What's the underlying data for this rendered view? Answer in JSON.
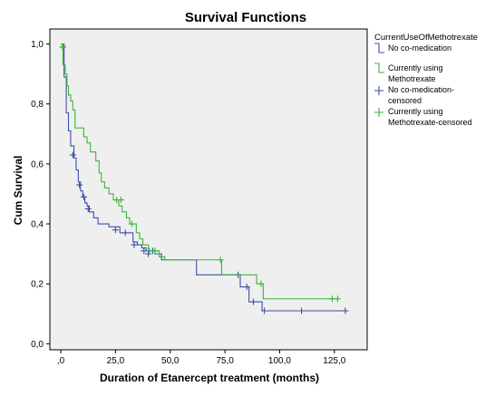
{
  "chart_data": {
    "type": "line",
    "title": "Survival Functions",
    "xlabel": "Duration of Etanercept treatment (months)",
    "ylabel": "Cum Survival",
    "xlim": [
      -5,
      140
    ],
    "ylim": [
      -0.02,
      1.05
    ],
    "x_ticks": [
      0,
      25,
      50,
      75,
      100,
      125
    ],
    "x_tick_labels": [
      ",0",
      "25,0",
      "50,0",
      "75,0",
      "100,0",
      "125,0"
    ],
    "y_ticks": [
      0,
      0.2,
      0.4,
      0.6,
      0.8,
      1.0
    ],
    "y_tick_labels": [
      "0,0",
      "0,2",
      "0,4",
      "0,6",
      "0,8",
      "1,0"
    ],
    "legend": {
      "title": "CurrentUseOfMethotrexate",
      "position": "right",
      "entries": [
        {
          "label": [
            "No co-medication"
          ],
          "color": "#3b4fa8",
          "marker": "step"
        },
        {
          "label": [
            "Currently using",
            "Methotrexate"
          ],
          "color": "#3bb53b",
          "marker": "step"
        },
        {
          "label": [
            "No co-medication-",
            "censored"
          ],
          "color": "#3b4fa8",
          "marker": "plus"
        },
        {
          "label": [
            "Currently using",
            "Methotrexate-censored"
          ],
          "color": "#3bb53b",
          "marker": "plus"
        }
      ]
    },
    "series": [
      {
        "name": "No co-medication",
        "color": "#3b4fa8",
        "steps": [
          [
            0,
            1.0
          ],
          [
            1.5,
            0.89
          ],
          [
            2.5,
            0.77
          ],
          [
            3.5,
            0.71
          ],
          [
            4.5,
            0.66
          ],
          [
            6,
            0.62
          ],
          [
            7,
            0.58
          ],
          [
            8,
            0.54
          ],
          [
            9,
            0.51
          ],
          [
            10,
            0.49
          ],
          [
            11,
            0.47
          ],
          [
            12,
            0.46
          ],
          [
            13,
            0.44
          ],
          [
            15,
            0.42
          ],
          [
            17,
            0.4
          ],
          [
            22,
            0.39
          ],
          [
            27,
            0.37
          ],
          [
            33,
            0.34
          ],
          [
            35,
            0.33
          ],
          [
            37,
            0.32
          ],
          [
            39,
            0.31
          ],
          [
            43,
            0.3
          ],
          [
            46,
            0.28
          ],
          [
            62,
            0.23
          ],
          [
            82,
            0.19
          ],
          [
            86,
            0.14
          ],
          [
            92,
            0.11
          ],
          [
            131,
            0.11
          ]
        ],
        "censored": [
          [
            1,
            0.99
          ],
          [
            5.5,
            0.63
          ],
          [
            8.5,
            0.53
          ],
          [
            10.5,
            0.49
          ],
          [
            12.5,
            0.45
          ],
          [
            25,
            0.38
          ],
          [
            29.5,
            0.37
          ],
          [
            33.5,
            0.33
          ],
          [
            38,
            0.31
          ],
          [
            40,
            0.3
          ],
          [
            42,
            0.31
          ],
          [
            81,
            0.23
          ],
          [
            85,
            0.19
          ],
          [
            88,
            0.14
          ],
          [
            93,
            0.11
          ],
          [
            110,
            0.11
          ],
          [
            130,
            0.11
          ]
        ]
      },
      {
        "name": "Currently using Methotrexate",
        "color": "#3bb53b",
        "steps": [
          [
            0,
            1.0
          ],
          [
            1,
            0.93
          ],
          [
            2,
            0.9
          ],
          [
            2.8,
            0.86
          ],
          [
            3.5,
            0.83
          ],
          [
            4.5,
            0.81
          ],
          [
            5.5,
            0.78
          ],
          [
            6.5,
            0.72
          ],
          [
            10.5,
            0.69
          ],
          [
            12,
            0.67
          ],
          [
            13.5,
            0.64
          ],
          [
            16,
            0.61
          ],
          [
            17.5,
            0.57
          ],
          [
            18.5,
            0.54
          ],
          [
            20,
            0.52
          ],
          [
            22,
            0.5
          ],
          [
            24,
            0.48
          ],
          [
            26.5,
            0.46
          ],
          [
            28,
            0.44
          ],
          [
            30,
            0.42
          ],
          [
            31.5,
            0.4
          ],
          [
            34.5,
            0.37
          ],
          [
            36,
            0.35
          ],
          [
            37.5,
            0.33
          ],
          [
            40,
            0.31
          ],
          [
            45,
            0.29
          ],
          [
            47.5,
            0.28
          ],
          [
            73.5,
            0.23
          ],
          [
            89.5,
            0.2
          ],
          [
            92.5,
            0.15
          ],
          [
            127,
            0.15
          ]
        ],
        "censored": [
          [
            0.8,
            0.99
          ],
          [
            25.5,
            0.48
          ],
          [
            27.5,
            0.48
          ],
          [
            32.5,
            0.4
          ],
          [
            40.5,
            0.31
          ],
          [
            43,
            0.31
          ],
          [
            73,
            0.28
          ],
          [
            91.5,
            0.2
          ],
          [
            124,
            0.15
          ],
          [
            126.5,
            0.15
          ]
        ]
      }
    ]
  }
}
